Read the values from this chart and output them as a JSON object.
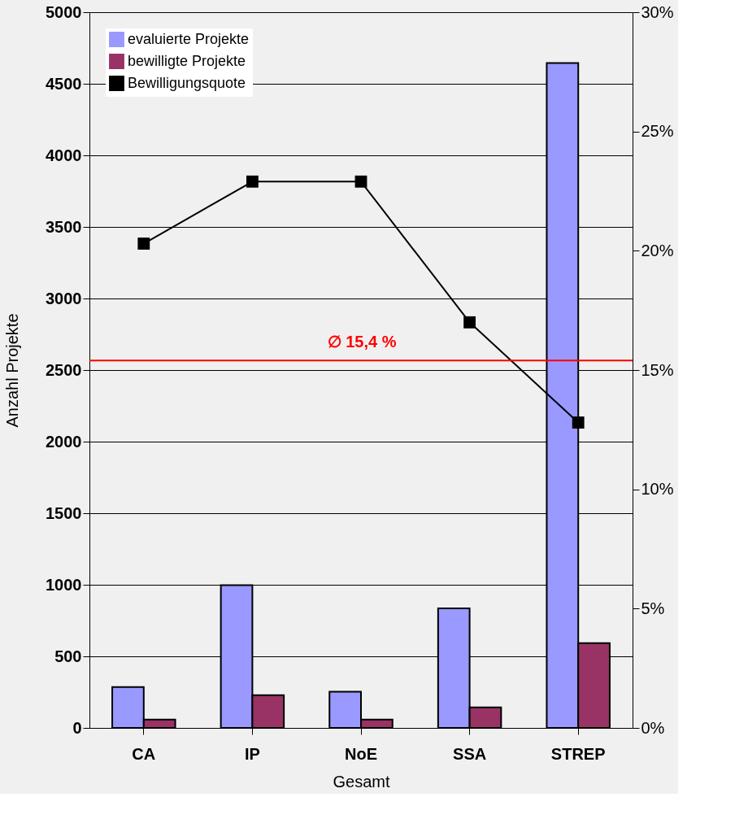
{
  "chart_data": {
    "type": "bar",
    "xlabel": "Gesamt",
    "ylabel": "Anzahl Projekte",
    "categories": [
      "CA",
      "IP",
      "NoE",
      "SSA",
      "STREP"
    ],
    "series": [
      {
        "name": "evaluierte Projekte",
        "color": "#9999ff",
        "values": [
          286,
          997,
          253,
          835,
          4645
        ]
      },
      {
        "name": "bewilligte Projekte",
        "color": "#993366",
        "values": [
          58,
          228,
          58,
          143,
          593
        ]
      },
      {
        "name": "Bewilligungsquote",
        "type": "line",
        "axis": "y2",
        "color": "#000000",
        "marker": "square",
        "line_style": "solid",
        "values": [
          20.3,
          22.9,
          22.9,
          17.0,
          12.8
        ]
      }
    ],
    "ylim": [
      0,
      5000
    ],
    "yticks": [
      0,
      500,
      1000,
      1500,
      2000,
      2500,
      3000,
      3500,
      4000,
      4500,
      5000
    ],
    "y2lim": [
      0,
      30
    ],
    "y2ticks": [
      {
        "value": 0,
        "label": "0%"
      },
      {
        "value": 5,
        "label": "5%"
      },
      {
        "value": 10,
        "label": "10%"
      },
      {
        "value": 15,
        "label": "15%"
      },
      {
        "value": 20,
        "label": "20%"
      },
      {
        "value": 25,
        "label": "25%"
      },
      {
        "value": 30,
        "label": "30%"
      }
    ],
    "ref_lines": [
      {
        "axis": "y2",
        "value": 15.4,
        "label": "∅ 15,4 %",
        "color": "#ff0000"
      }
    ],
    "grid": "y",
    "legend": "top left"
  }
}
